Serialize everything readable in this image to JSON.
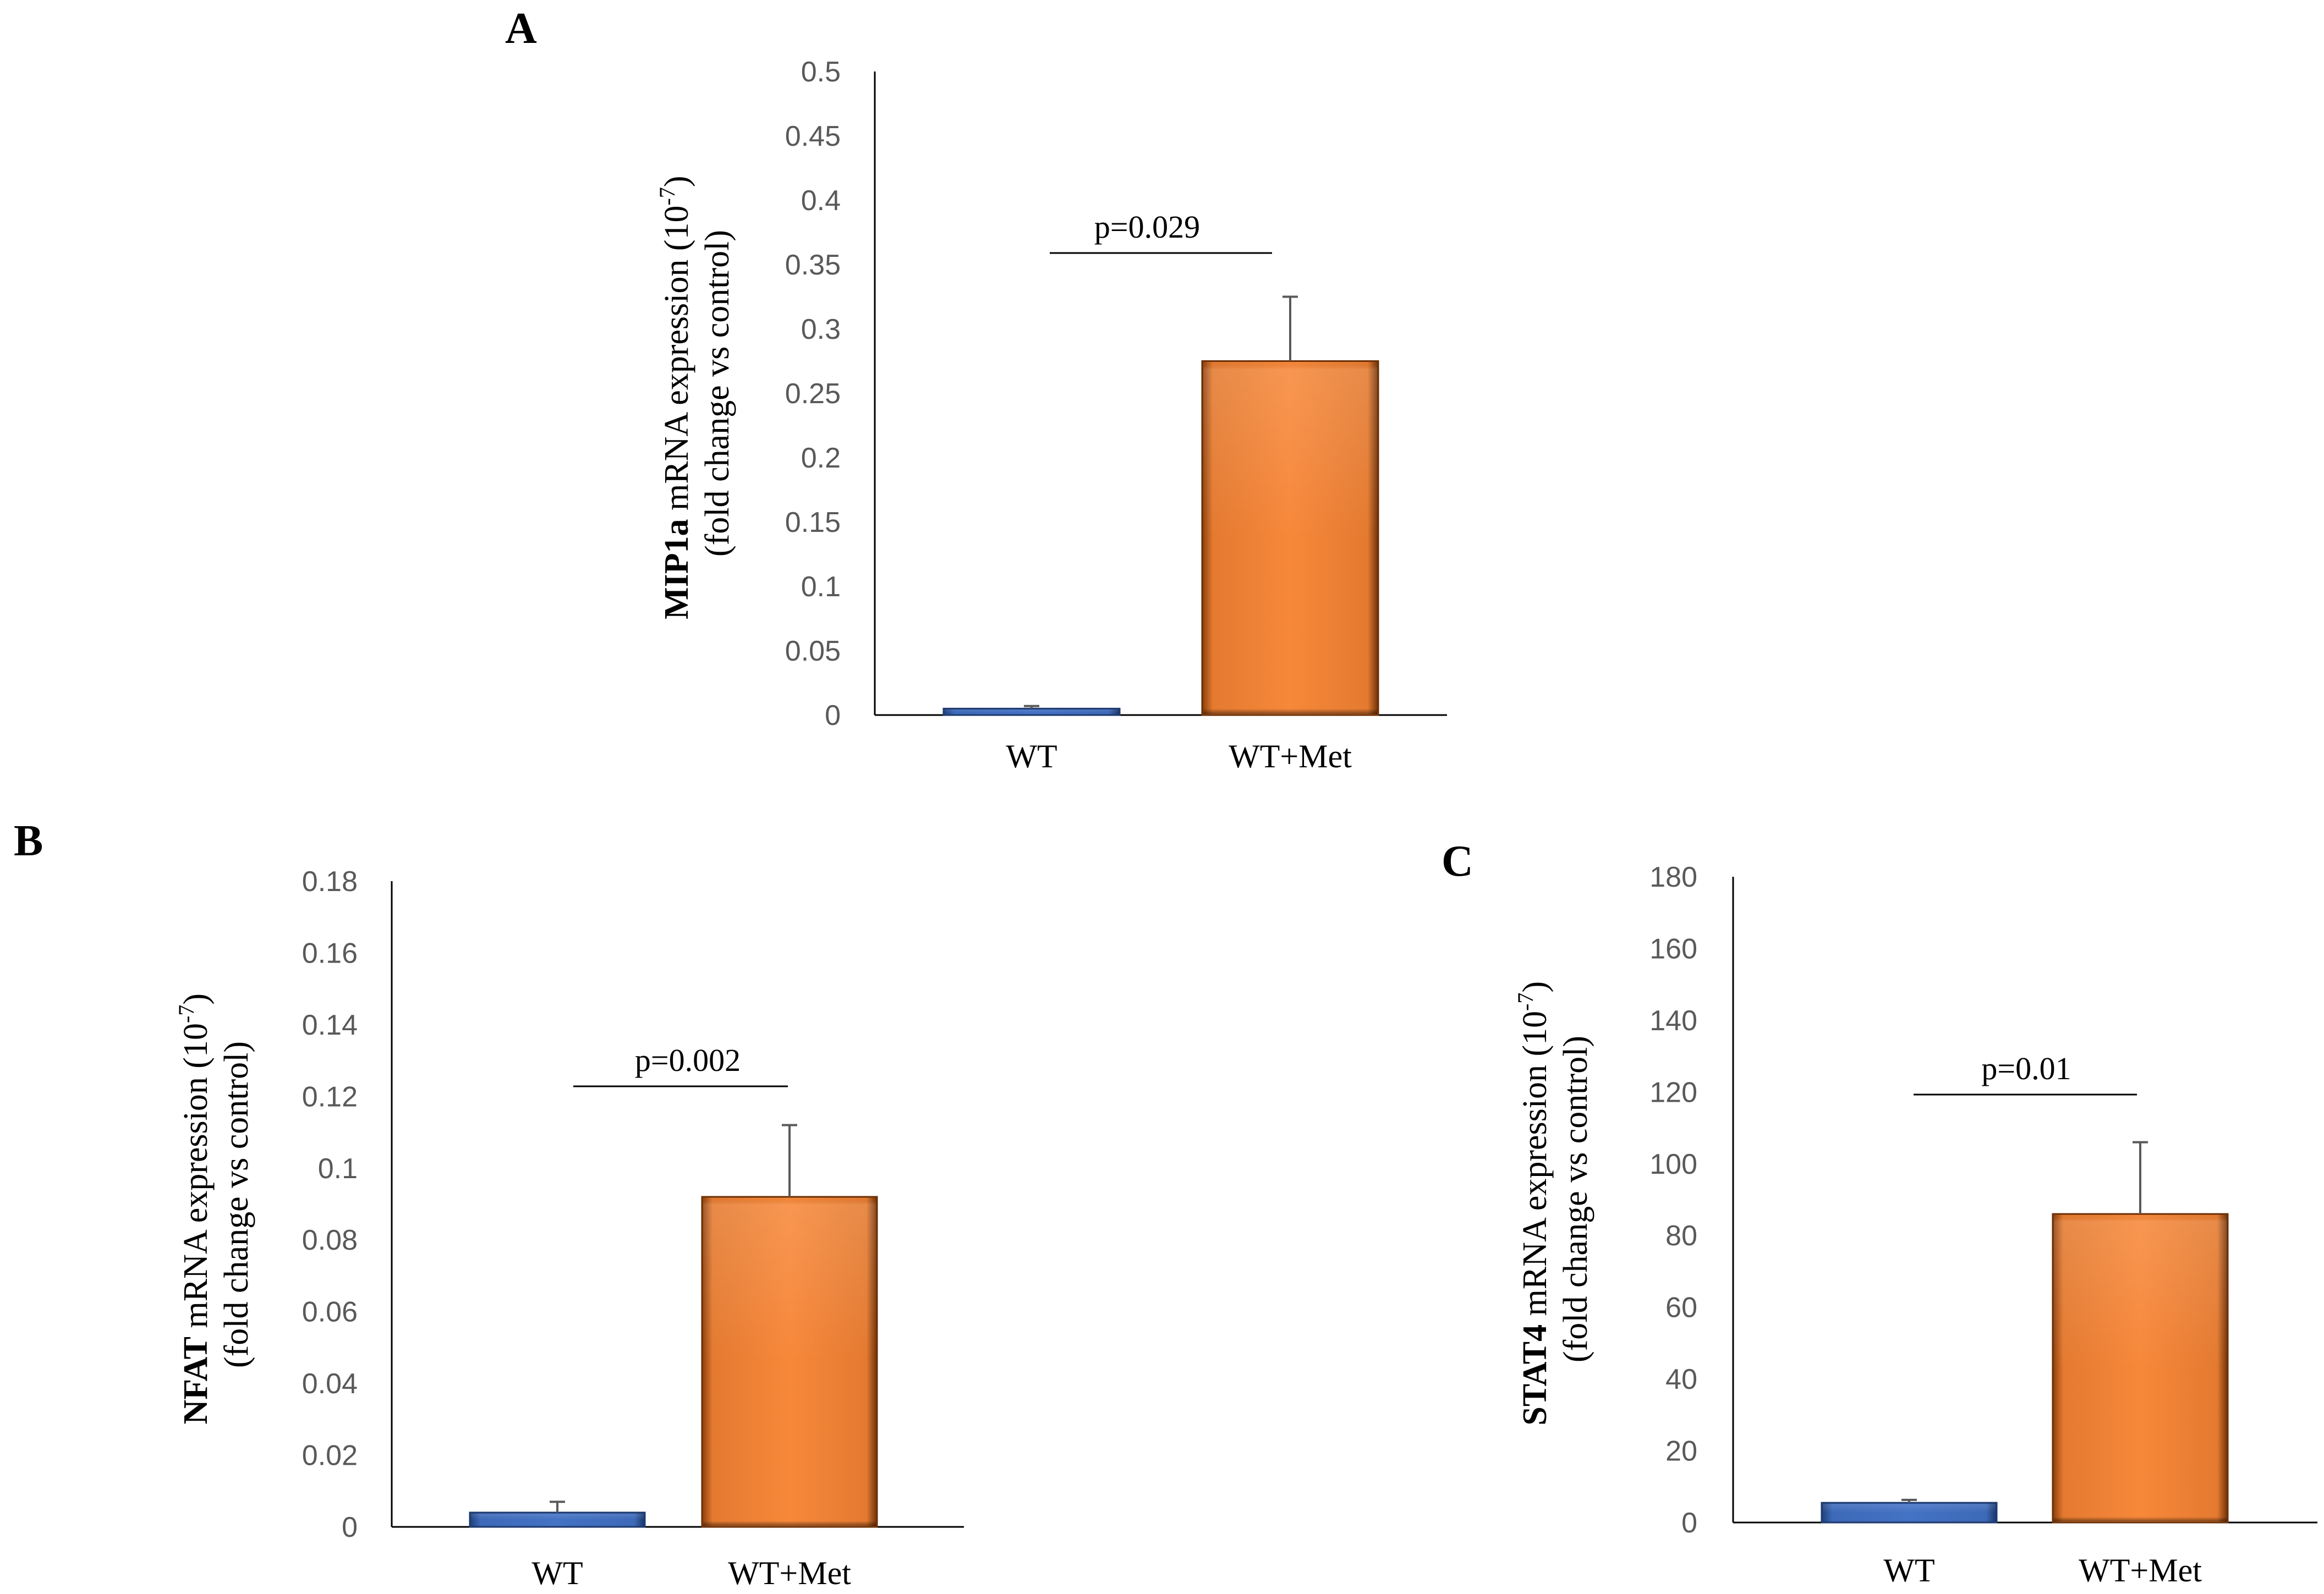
{
  "colors": {
    "wt": "#4472c4",
    "wt_met": "#f7883a",
    "axis": "#000000",
    "tick_text": "#595959",
    "error_bar": "#595959"
  },
  "chart_data": [
    {
      "panel_label": "A",
      "type": "bar",
      "categories": [
        "WT",
        "WT+Met"
      ],
      "values": [
        0.005,
        0.275
      ],
      "errors": [
        0.002,
        0.05
      ],
      "ylim": [
        0,
        0.5
      ],
      "yticks": [
        "0",
        "0.05",
        "0.1",
        "0.15",
        "0.2",
        "0.25",
        "0.3",
        "0.35",
        "0.4",
        "0.45",
        "0.5"
      ],
      "ylabel": {
        "gene": "MIP1a",
        "rest": " mRNA expression (10",
        "sup": "-7",
        "close": ")",
        "line2": "(fold change vs control)"
      },
      "annotation": "p=0.029",
      "grid": false
    },
    {
      "panel_label": "B",
      "type": "bar",
      "categories": [
        "WT",
        "WT+Met"
      ],
      "values": [
        0.004,
        0.092
      ],
      "errors": [
        0.003,
        0.02
      ],
      "ylim": [
        0,
        0.18
      ],
      "yticks": [
        "0",
        "0.02",
        "0.04",
        "0.06",
        "0.08",
        "0.1",
        "0.12",
        "0.14",
        "0.16",
        "0.18"
      ],
      "ylabel": {
        "gene": "NFAT",
        "rest": " mRNA expression (10",
        "sup": "-7",
        "close": ")",
        "line2": "(fold change vs control)"
      },
      "annotation": "p=0.002",
      "grid": false
    },
    {
      "panel_label": "C",
      "type": "bar",
      "categories": [
        "WT",
        "WT+Met"
      ],
      "values": [
        5.5,
        86
      ],
      "errors": [
        0.8,
        20
      ],
      "ylim": [
        0,
        180
      ],
      "yticks": [
        "0",
        "20",
        "40",
        "60",
        "80",
        "100",
        "120",
        "140",
        "160",
        "180"
      ],
      "ylabel": {
        "gene": "STAT4",
        "rest": " mRNA expression (10",
        "sup": "-7",
        "close": ")",
        "line2": "(fold change vs control)"
      },
      "annotation": "p=0.01",
      "grid": false
    }
  ]
}
